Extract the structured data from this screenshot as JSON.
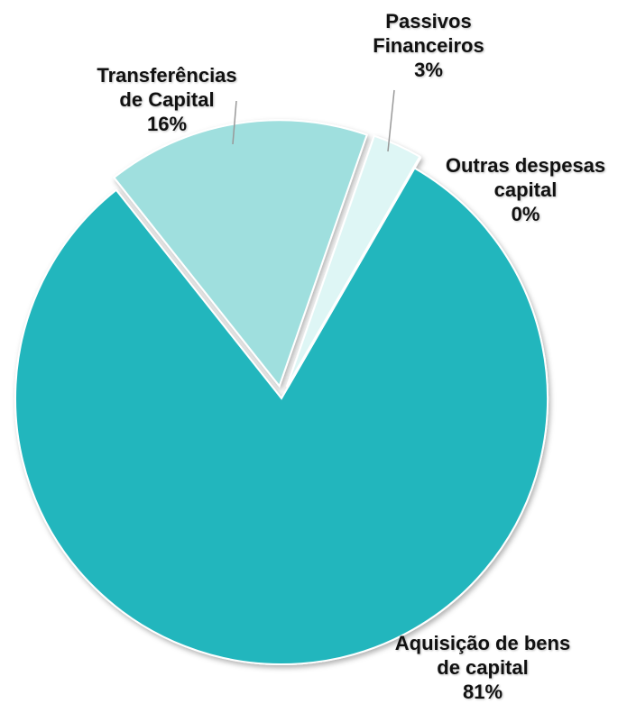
{
  "chart_data": {
    "type": "pie",
    "categories": [
      "Aquisição de bens de capital",
      "Transferências de Capital",
      "Passivos Financeiros",
      "Outras despesas capital"
    ],
    "values": [
      81,
      16,
      3,
      0
    ],
    "value_labels": [
      "81%",
      "16%",
      "3%",
      "0%"
    ],
    "colors": [
      "#22b6bd",
      "#9fdfde",
      "#def6f5",
      "#ffffff"
    ]
  }
}
